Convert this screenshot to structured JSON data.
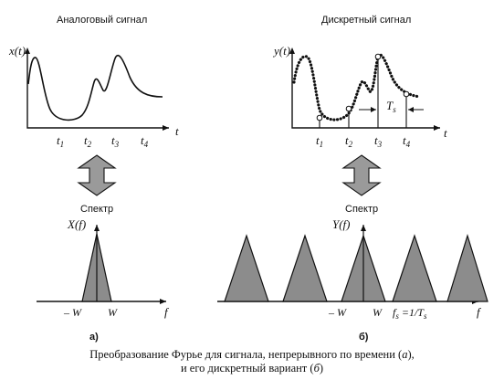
{
  "top_left": {
    "title": "Аналоговый сигнал",
    "ylabel": "x(t)",
    "xlabel": "t",
    "ticks": [
      {
        "base": "t",
        "sub": "1"
      },
      {
        "base": "t",
        "sub": "2"
      },
      {
        "base": "t",
        "sub": "3"
      },
      {
        "base": "t",
        "sub": "4"
      }
    ]
  },
  "top_right": {
    "title": "Дискретный сигнал",
    "ylabel": "y(t)",
    "xlabel": "t",
    "period": {
      "base": "T",
      "sub": "s"
    },
    "ticks": [
      {
        "base": "t",
        "sub": "1"
      },
      {
        "base": "t",
        "sub": "2"
      },
      {
        "base": "t",
        "sub": "3"
      },
      {
        "base": "t",
        "sub": "4"
      }
    ]
  },
  "bottom_left": {
    "title": "Спектр",
    "ylabel": "X(f)",
    "xlabel": "f",
    "minus_w": "– W",
    "plus_w": "W",
    "panel_label": "а)"
  },
  "bottom_right": {
    "title": "Спектр",
    "ylabel": "Y(f)",
    "xlabel": "f",
    "minus_w": "– W",
    "plus_w": "W",
    "fs_label": {
      "f": "f",
      "fsub": "s",
      "eq": " =1/",
      "T": "T",
      "Tsub": "s"
    },
    "panel_label": "б)"
  },
  "caption": {
    "line1_a": "Преобразование Фурье для сигнала, непрерывного по времени (",
    "line1_b": "а",
    "line1_c": "),",
    "line2_a": "и его дискретный вариант (",
    "line2_b": "б",
    "line2_c": ")"
  }
}
